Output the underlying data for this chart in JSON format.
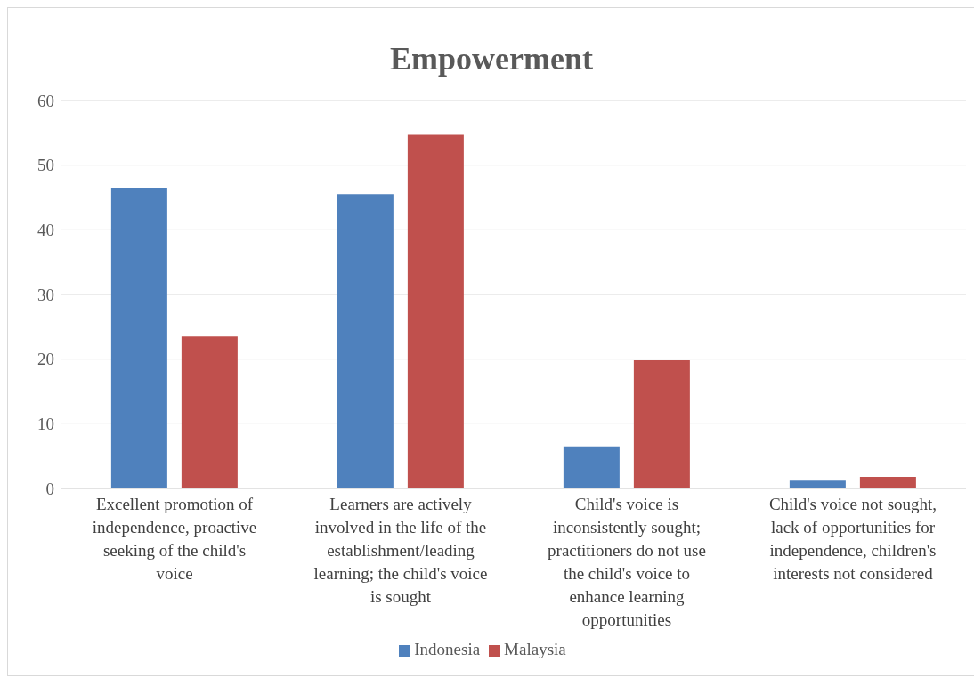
{
  "chart_data": {
    "type": "bar",
    "title": "Empowerment",
    "categories": [
      "Excellent promotion of independence, proactive seeking of the child's voice",
      "Learners are actively involved in the life of the establishment/leading learning; the child's voice is sought",
      "Child's voice is inconsistently sought; practitioners do not use the child's voice to enhance learning opportunities",
      "Child's voice not sought, lack of opportunities for independence, children's interests not considered"
    ],
    "series": [
      {
        "name": "Indonesia",
        "color": "#4f81bd",
        "values": [
          46.5,
          45.5,
          6.5,
          1.2
        ]
      },
      {
        "name": "Malaysia",
        "color": "#c0504d",
        "values": [
          23.5,
          54.7,
          19.8,
          1.8
        ]
      }
    ],
    "ylim": [
      0,
      60
    ],
    "yticks": [
      0,
      10,
      20,
      30,
      40,
      50,
      60
    ],
    "grid": "y",
    "legend": "bottom"
  }
}
